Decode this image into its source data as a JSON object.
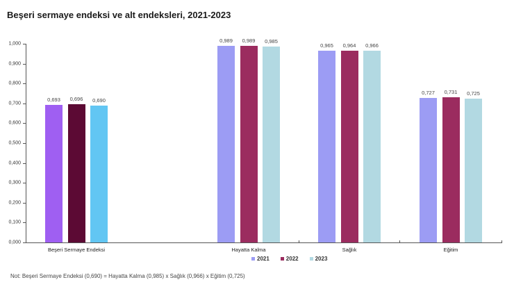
{
  "chart_data": {
    "type": "bar",
    "title": "Beşeri sermaye endeksi ve alt endeksleri, 2021-2023",
    "categories": [
      "Beşeri Sermaye Endeksi",
      "Hayatta Kalma",
      "Sağlık",
      "Eğitim"
    ],
    "series": [
      {
        "name": "2021",
        "values": [
          0.693,
          0.989,
          0.965,
          0.727
        ],
        "labels": [
          "0,693",
          "0,989",
          "0,965",
          "0,727"
        ]
      },
      {
        "name": "2022",
        "values": [
          0.696,
          0.989,
          0.964,
          0.731
        ],
        "labels": [
          "0,696",
          "0,989",
          "0,964",
          "0,731"
        ]
      },
      {
        "name": "2023",
        "values": [
          0.69,
          0.985,
          0.966,
          0.725
        ],
        "labels": [
          "0,690",
          "0,985",
          "0,966",
          "0,725"
        ]
      }
    ],
    "xlabel": "",
    "ylabel": "",
    "ylim": [
      0,
      1.0
    ],
    "yticks": [
      "0,000",
      "0,100",
      "0,200",
      "0,300",
      "0,400",
      "0,500",
      "0,600",
      "0,700",
      "0,800",
      "0,900",
      "1,000"
    ],
    "grid": false,
    "legend_position": "bottom",
    "colors": {
      "first_group": [
        "#9f5ff2",
        "#5c0a34",
        "#62c6f3"
      ],
      "other_groups": [
        "#9c9cf4",
        "#9b2c5f",
        "#b2d9e2"
      ]
    },
    "legend_colors": [
      "#9c9cf4",
      "#9b2c5f",
      "#b2d9e2"
    ],
    "note": "Not: Beşeri Sermaye Endeksi (0,690) = Hayatta Kalma (0,985) x Sağlık (0,966) x Eğitim (0,725)"
  }
}
